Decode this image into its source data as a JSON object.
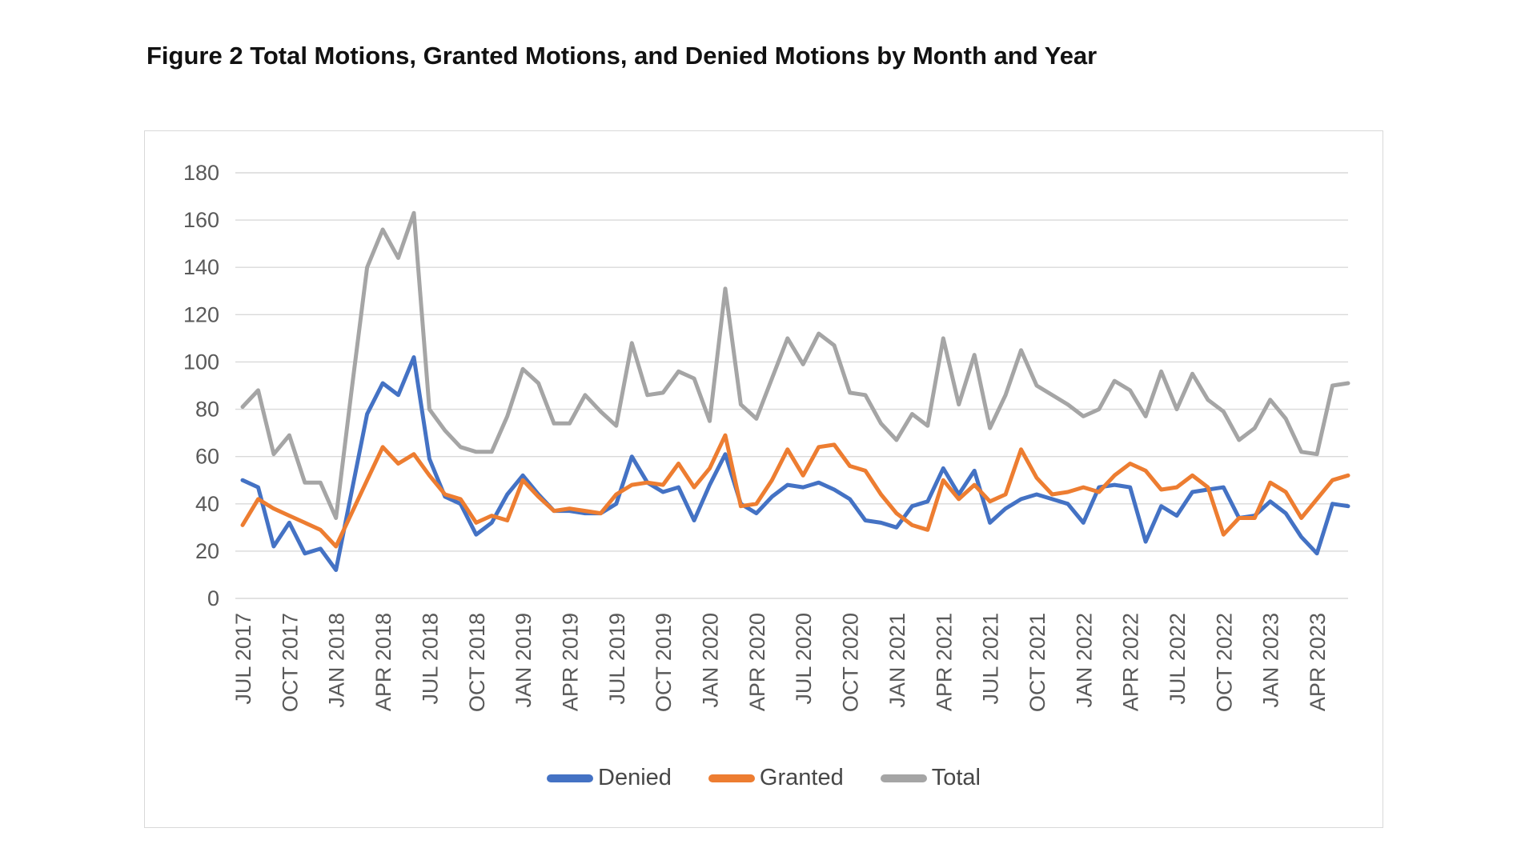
{
  "title": "Figure 2 Total Motions, Granted Motions, and Denied Motions by Month and Year",
  "chart_data": {
    "type": "line",
    "title": "Figure 2 Total Motions, Granted Motions, and Denied Motions by Month and Year",
    "xlabel": "",
    "ylabel": "",
    "ylim": [
      0,
      180
    ],
    "ytick_step": 20,
    "grid": "horizontal",
    "gridline_color": "#d9d9d9",
    "tick_label_color": "#595959",
    "legend_position": "bottom",
    "x_start": "JUL 2017",
    "x_end": "JUN 2023",
    "months_per_tick": 3,
    "x_tick_labels": [
      "JUL 2017",
      "OCT 2017",
      "JAN 2018",
      "APR 2018",
      "JUL 2018",
      "OCT 2018",
      "JAN 2019",
      "APR 2019",
      "JUL 2019",
      "OCT 2019",
      "JAN 2020",
      "APR 2020",
      "JUL 2020",
      "OCT 2020",
      "JAN 2021",
      "APR 2021",
      "JUL 2021",
      "OCT 2021",
      "JAN 2022",
      "APR 2022",
      "JUL 2022",
      "OCT 2022",
      "JAN 2023",
      "APR 2023"
    ],
    "series": [
      {
        "name": "Denied",
        "color": "#4472C4",
        "values": [
          50,
          47,
          22,
          32,
          19,
          21,
          12,
          45,
          78,
          91,
          86,
          102,
          59,
          43,
          40,
          27,
          32,
          44,
          52,
          44,
          37,
          37,
          36,
          36,
          40,
          60,
          49,
          45,
          47,
          33,
          48,
          61,
          40,
          36,
          43,
          48,
          47,
          49,
          46,
          42,
          33,
          32,
          30,
          39,
          41,
          55,
          44,
          54,
          32,
          38,
          42,
          44,
          42,
          40,
          32,
          47,
          48,
          47,
          24,
          39,
          35,
          45,
          46,
          47,
          34,
          35,
          41,
          36,
          26,
          19,
          40,
          39
        ]
      },
      {
        "name": "Granted",
        "color": "#ED7D31",
        "values": [
          31,
          42,
          38,
          35,
          32,
          29,
          22,
          36,
          50,
          64,
          57,
          61,
          52,
          44,
          42,
          32,
          35,
          33,
          50,
          43,
          37,
          38,
          37,
          36,
          44,
          48,
          49,
          48,
          57,
          47,
          55,
          69,
          39,
          40,
          50,
          63,
          52,
          64,
          65,
          56,
          54,
          44,
          36,
          31,
          29,
          50,
          42,
          48,
          41,
          44,
          63,
          51,
          44,
          45,
          47,
          45,
          52,
          57,
          54,
          46,
          47,
          52,
          47,
          27,
          34,
          34,
          49,
          45,
          34,
          42,
          50,
          52
        ]
      },
      {
        "name": "Total",
        "color": "#A5A5A5",
        "values": [
          81,
          88,
          61,
          69,
          49,
          49,
          34,
          88,
          140,
          156,
          144,
          163,
          80,
          71,
          64,
          62,
          62,
          77,
          97,
          91,
          74,
          74,
          86,
          79,
          73,
          108,
          86,
          87,
          96,
          93,
          75,
          131,
          82,
          76,
          93,
          110,
          99,
          112,
          107,
          87,
          86,
          74,
          67,
          78,
          73,
          110,
          82,
          103,
          72,
          86,
          105,
          90,
          86,
          82,
          77,
          80,
          92,
          88,
          77,
          96,
          80,
          95,
          84,
          79,
          67,
          72,
          84,
          76,
          62,
          61,
          90,
          91
        ]
      }
    ]
  },
  "legend": {
    "items": [
      {
        "label": "Denied",
        "color": "#4472C4"
      },
      {
        "label": "Granted",
        "color": "#ED7D31"
      },
      {
        "label": "Total",
        "color": "#A5A5A5"
      }
    ]
  }
}
